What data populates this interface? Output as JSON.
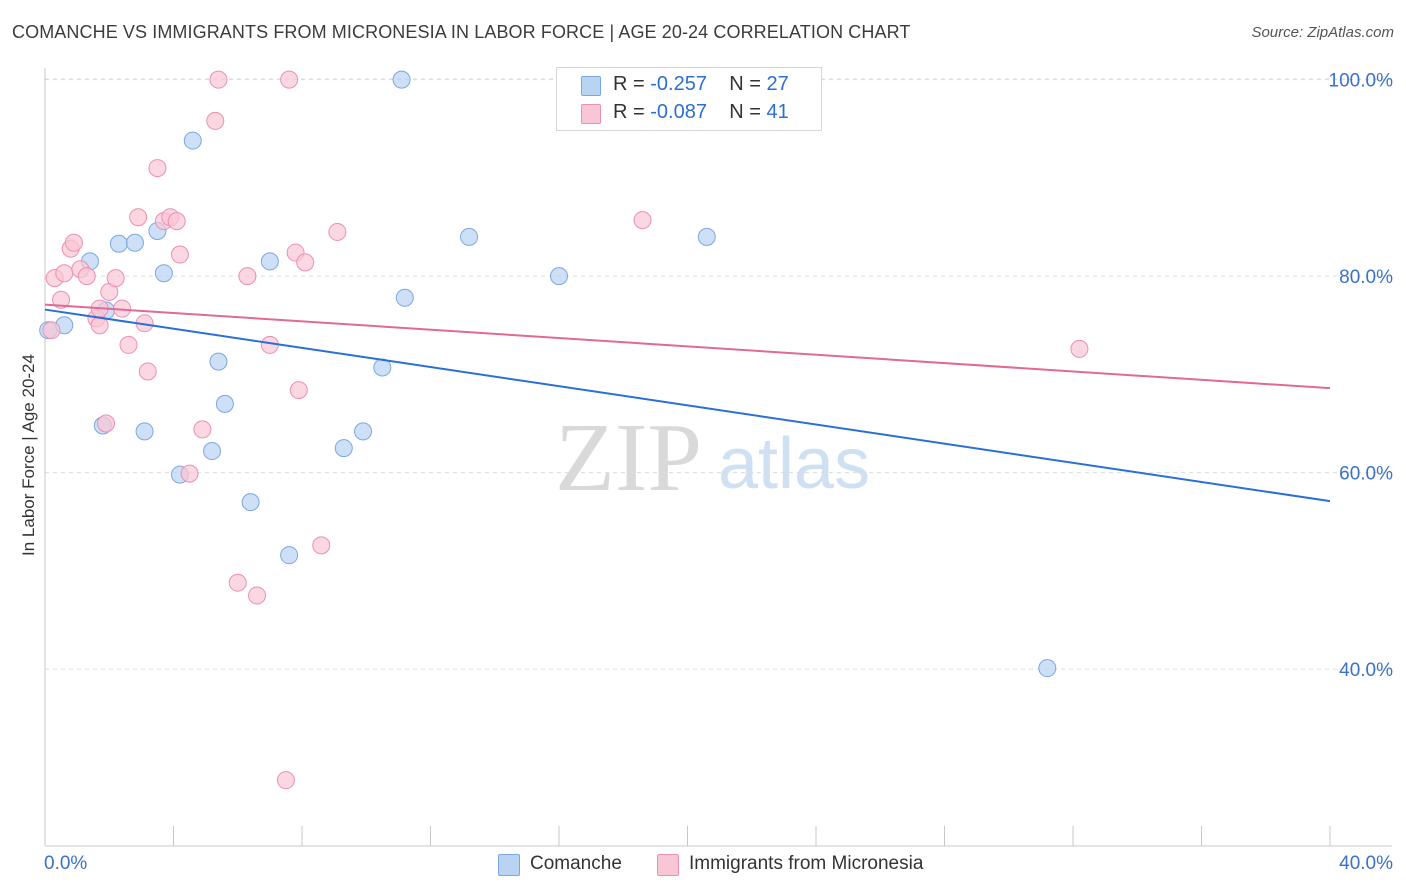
{
  "title": "COMANCHE VS IMMIGRANTS FROM MICRONESIA IN LABOR FORCE | AGE 20-24 CORRELATION CHART",
  "source": "Source: ZipAtlas.com",
  "watermark": {
    "part1": "ZIP",
    "part2": "atlas"
  },
  "legend_top": [
    {
      "r_label": "R = ",
      "r_value": "-0.257",
      "n_label": "N = ",
      "n_value": "27"
    },
    {
      "r_label": "R = ",
      "r_value": "-0.087",
      "n_label": "N = ",
      "n_value": "41"
    }
  ],
  "colors": {
    "comanche_fill": "#b9d3f3",
    "comanche_edge": "#7aa8e0",
    "comanche_line": "#2b6fd6",
    "micronesia_fill": "#f9c6d6",
    "micronesia_edge": "#ec90b0",
    "micronesia_line": "#e06a93",
    "grid": "#dcdcdc",
    "tick_text": "#3a72c8"
  },
  "chart_data": {
    "type": "scatter",
    "title": "COMANCHE VS IMMIGRANTS FROM MICRONESIA IN LABOR FORCE | AGE 20-24 CORRELATION CHART",
    "xlabel": "",
    "ylabel": "In Labor Force | Age 20-24",
    "xlim": [
      0,
      40
    ],
    "ylim": [
      22,
      102
    ],
    "x_tick_labels": [
      "0.0%",
      "40.0%"
    ],
    "y_ticks": [
      40,
      60,
      80,
      100
    ],
    "y_tick_labels": [
      "40.0%",
      "60.0%",
      "80.0%",
      "100.0%"
    ],
    "grid": true,
    "legend_position": "bottom-center",
    "series": [
      {
        "name": "Comanche",
        "points": [
          [
            0.1,
            74.5
          ],
          [
            0.6,
            75.0
          ],
          [
            1.9,
            76.5
          ],
          [
            1.4,
            81.5
          ],
          [
            2.3,
            83.3
          ],
          [
            2.8,
            83.4
          ],
          [
            3.5,
            84.6
          ],
          [
            3.7,
            80.3
          ],
          [
            4.6,
            93.8
          ],
          [
            5.4,
            71.3
          ],
          [
            5.6,
            67.0
          ],
          [
            5.2,
            62.2
          ],
          [
            4.2,
            59.8
          ],
          [
            3.1,
            64.2
          ],
          [
            1.8,
            64.8
          ],
          [
            6.4,
            57.0
          ],
          [
            7.0,
            81.5
          ],
          [
            7.6,
            51.6
          ],
          [
            9.3,
            62.5
          ],
          [
            9.9,
            64.2
          ],
          [
            10.5,
            70.7
          ],
          [
            11.1,
            100.0
          ],
          [
            11.2,
            77.8
          ],
          [
            13.2,
            84.0
          ],
          [
            16.0,
            80.0
          ],
          [
            20.6,
            84.0
          ],
          [
            31.2,
            40.1
          ]
        ],
        "trend": {
          "x": [
            0,
            40
          ],
          "y": [
            76.6,
            57.1
          ]
        }
      },
      {
        "name": "Immigrants from Micronesia",
        "points": [
          [
            0.2,
            74.5
          ],
          [
            0.3,
            79.8
          ],
          [
            0.5,
            77.6
          ],
          [
            0.6,
            80.3
          ],
          [
            0.8,
            82.8
          ],
          [
            0.9,
            83.4
          ],
          [
            1.1,
            80.7
          ],
          [
            1.3,
            80.0
          ],
          [
            1.6,
            75.7
          ],
          [
            1.7,
            76.7
          ],
          [
            1.7,
            75.0
          ],
          [
            1.9,
            65.0
          ],
          [
            2.0,
            78.4
          ],
          [
            2.2,
            79.8
          ],
          [
            2.4,
            76.7
          ],
          [
            2.6,
            73.0
          ],
          [
            2.9,
            86.0
          ],
          [
            3.1,
            75.2
          ],
          [
            3.2,
            70.3
          ],
          [
            3.5,
            91.0
          ],
          [
            3.7,
            85.6
          ],
          [
            3.9,
            86.0
          ],
          [
            4.1,
            85.6
          ],
          [
            4.2,
            82.2
          ],
          [
            4.5,
            59.9
          ],
          [
            4.9,
            64.4
          ],
          [
            5.3,
            95.8
          ],
          [
            5.4,
            100.0
          ],
          [
            6.0,
            48.8
          ],
          [
            6.3,
            80.0
          ],
          [
            6.6,
            47.5
          ],
          [
            7.0,
            73.0
          ],
          [
            7.5,
            28.7
          ],
          [
            7.6,
            100.0
          ],
          [
            7.8,
            82.4
          ],
          [
            7.9,
            68.4
          ],
          [
            8.1,
            81.4
          ],
          [
            8.6,
            52.6
          ],
          [
            9.1,
            84.5
          ],
          [
            18.6,
            85.7
          ],
          [
            32.2,
            72.6
          ]
        ],
        "trend": {
          "x": [
            0,
            40
          ],
          "y": [
            77.1,
            68.6
          ]
        }
      }
    ]
  }
}
